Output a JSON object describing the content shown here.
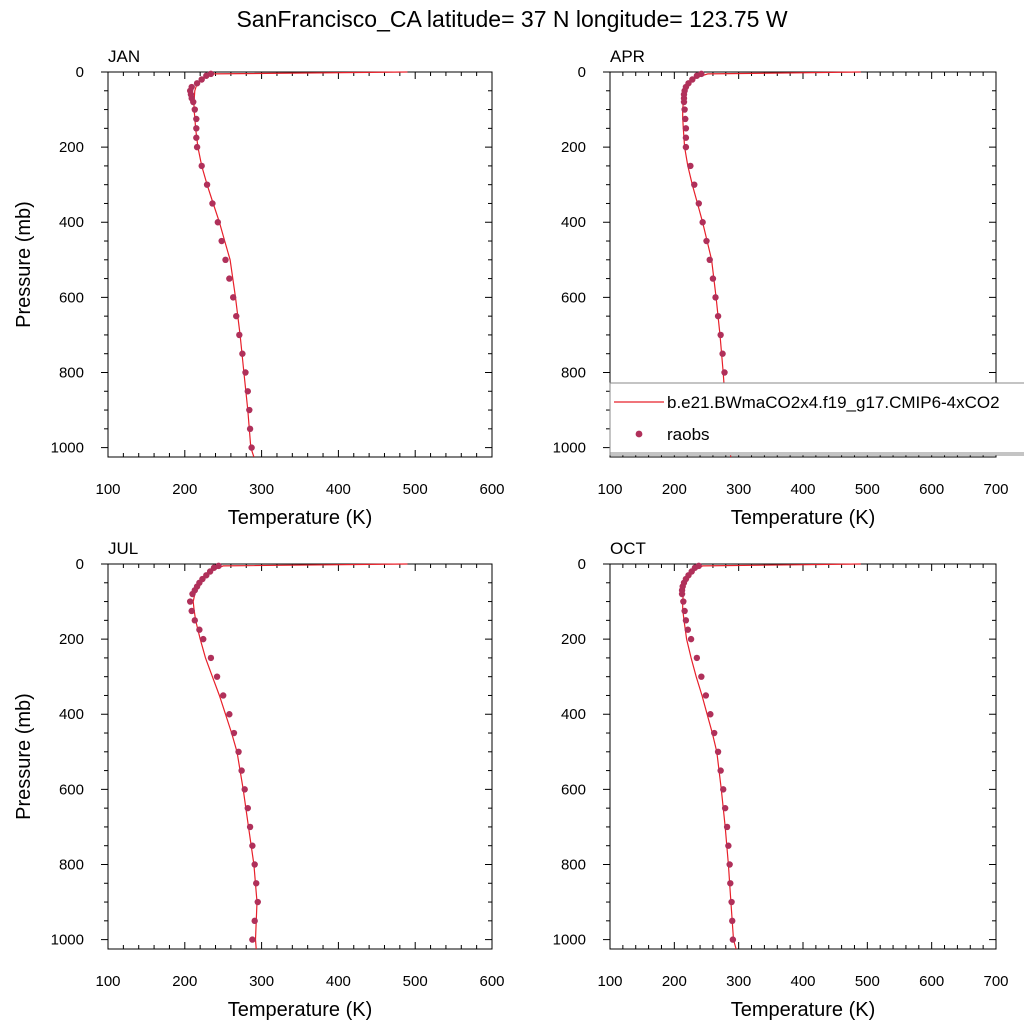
{
  "title": "SanFrancisco_CA  latitude= 37 N longitude= 123.75 W",
  "colors": {
    "model_line": "#e8202a",
    "obs_marker": "#b0305a",
    "axis": "#000000",
    "legend_border": "#888888"
  },
  "legend": {
    "model_label": "b.e21.BWmaCO2x4.f19_g17.CMIP6-4xCO2",
    "obs_label": "raobs"
  },
  "chart_data": [
    {
      "type": "scatter",
      "panel_label": "JAN",
      "xlabel": "Temperature (K)",
      "ylabel": "Pressure (mb)",
      "xlim": [
        100,
        600
      ],
      "ylim": [
        1025,
        0
      ],
      "y_reversed": true,
      "xticks": [
        "100",
        "200",
        "300",
        "400",
        "500",
        "600"
      ],
      "yticks": [
        "0",
        "200",
        "400",
        "600",
        "800",
        "1000"
      ],
      "series": [
        {
          "name": "b.e21.BWmaCO2x4.f19_g17.CMIP6-4xCO2",
          "mark": "line",
          "x": [
            290,
            286,
            282,
            277,
            272,
            266,
            259,
            252,
            245,
            237,
            229,
            222,
            217,
            214,
            213,
            212,
            212,
            213,
            216,
            224,
            236,
            490
          ],
          "y": [
            1025,
            1000,
            900,
            800,
            700,
            600,
            500,
            450,
            400,
            350,
            300,
            250,
            200,
            150,
            120,
            100,
            80,
            50,
            30,
            15,
            5,
            0
          ]
        },
        {
          "name": "raobs",
          "mark": "marker",
          "x": [
            287,
            285,
            284,
            282,
            279,
            275,
            271,
            267,
            263,
            258,
            253,
            248,
            243,
            236,
            229,
            222,
            216,
            215,
            215,
            215,
            213,
            211,
            209,
            208,
            207,
            209,
            216,
            222,
            228,
            234
          ],
          "y": [
            1000,
            950,
            900,
            850,
            800,
            750,
            700,
            650,
            600,
            550,
            500,
            450,
            400,
            350,
            300,
            250,
            200,
            175,
            150,
            125,
            100,
            80,
            70,
            60,
            50,
            40,
            30,
            20,
            10,
            5
          ]
        }
      ]
    },
    {
      "type": "scatter",
      "panel_label": "APR",
      "xlabel": "Temperature (K)",
      "ylabel": "",
      "xlim": [
        100,
        700
      ],
      "ylim": [
        1025,
        0
      ],
      "y_reversed": true,
      "xticks": [
        "100",
        "200",
        "300",
        "400",
        "500",
        "600",
        "700"
      ],
      "yticks": [
        "0",
        "200",
        "400",
        "600",
        "800",
        "1000"
      ],
      "series": [
        {
          "name": "b.e21.BWmaCO2x4.f19_g17.CMIP6-4xCO2",
          "mark": "line",
          "x": [
            288,
            284,
            280,
            276,
            271,
            265,
            258,
            251,
            244,
            236,
            228,
            221,
            216,
            214,
            213,
            213,
            214,
            216,
            222,
            234,
            252,
            490
          ],
          "y": [
            1025,
            1000,
            900,
            800,
            700,
            600,
            500,
            450,
            400,
            350,
            300,
            250,
            200,
            150,
            120,
            100,
            80,
            50,
            30,
            15,
            5,
            0
          ]
        },
        {
          "name": "raobs",
          "mark": "marker",
          "x": [
            285,
            284,
            282,
            280,
            278,
            275,
            272,
            268,
            264,
            260,
            255,
            250,
            244,
            238,
            231,
            225,
            218,
            218,
            218,
            217,
            216,
            215,
            215,
            215,
            216,
            218,
            222,
            228,
            235,
            242
          ],
          "y": [
            1000,
            950,
            900,
            850,
            800,
            750,
            700,
            650,
            600,
            550,
            500,
            450,
            400,
            350,
            300,
            250,
            200,
            175,
            150,
            125,
            100,
            80,
            70,
            60,
            50,
            40,
            30,
            20,
            10,
            5
          ]
        }
      ]
    },
    {
      "type": "scatter",
      "panel_label": "JUL",
      "xlabel": "Temperature (K)",
      "ylabel": "Pressure (mb)",
      "xlim": [
        100,
        600
      ],
      "ylim": [
        1025,
        0
      ],
      "y_reversed": true,
      "xticks": [
        "100",
        "200",
        "300",
        "400",
        "500",
        "600"
      ],
      "yticks": [
        "0",
        "200",
        "400",
        "600",
        "800",
        "1000"
      ],
      "series": [
        {
          "name": "b.e21.BWmaCO2x4.f19_g17.CMIP6-4xCO2",
          "mark": "line",
          "x": [
            293,
            292,
            294,
            290,
            283,
            276,
            268,
            261,
            253,
            245,
            236,
            227,
            220,
            214,
            212,
            211,
            213,
            218,
            226,
            238,
            250,
            490
          ],
          "y": [
            1025,
            1000,
            900,
            800,
            700,
            600,
            500,
            450,
            400,
            350,
            300,
            250,
            200,
            150,
            120,
            100,
            80,
            50,
            30,
            15,
            5,
            0
          ]
        },
        {
          "name": "raobs",
          "mark": "marker",
          "x": [
            288,
            291,
            295,
            293,
            291,
            288,
            285,
            282,
            278,
            274,
            270,
            264,
            258,
            250,
            242,
            234,
            224,
            219,
            213,
            209,
            207,
            210,
            213,
            216,
            219,
            223,
            228,
            233,
            238,
            244
          ],
          "y": [
            1000,
            950,
            900,
            850,
            800,
            750,
            700,
            650,
            600,
            550,
            500,
            450,
            400,
            350,
            300,
            250,
            200,
            175,
            150,
            125,
            100,
            80,
            70,
            60,
            50,
            40,
            30,
            20,
            10,
            5
          ]
        }
      ]
    },
    {
      "type": "scatter",
      "panel_label": "OCT",
      "xlabel": "Temperature (K)",
      "ylabel": "",
      "xlim": [
        100,
        700
      ],
      "ylim": [
        1025,
        0
      ],
      "y_reversed": true,
      "xticks": [
        "100",
        "200",
        "300",
        "400",
        "500",
        "600",
        "700"
      ],
      "yticks": [
        "0",
        "200",
        "400",
        "600",
        "800",
        "1000"
      ],
      "series": [
        {
          "name": "b.e21.BWmaCO2x4.f19_g17.CMIP6-4xCO2",
          "mark": "line",
          "x": [
            296,
            292,
            288,
            284,
            279,
            273,
            266,
            259,
            251,
            243,
            234,
            226,
            219,
            215,
            213,
            213,
            214,
            217,
            222,
            232,
            244,
            490
          ],
          "y": [
            1025,
            1000,
            900,
            800,
            700,
            600,
            500,
            450,
            400,
            350,
            300,
            250,
            200,
            150,
            120,
            100,
            80,
            50,
            30,
            15,
            5,
            0
          ]
        },
        {
          "name": "raobs",
          "mark": "marker",
          "x": [
            291,
            290,
            289,
            287,
            286,
            284,
            282,
            279,
            276,
            272,
            268,
            262,
            256,
            249,
            242,
            235,
            226,
            221,
            218,
            216,
            214,
            212,
            212,
            213,
            215,
            218,
            222,
            227,
            232,
            238
          ],
          "y": [
            1000,
            950,
            900,
            850,
            800,
            750,
            700,
            650,
            600,
            550,
            500,
            450,
            400,
            350,
            300,
            250,
            200,
            175,
            150,
            125,
            100,
            80,
            70,
            60,
            50,
            40,
            30,
            20,
            10,
            5
          ]
        }
      ]
    }
  ]
}
